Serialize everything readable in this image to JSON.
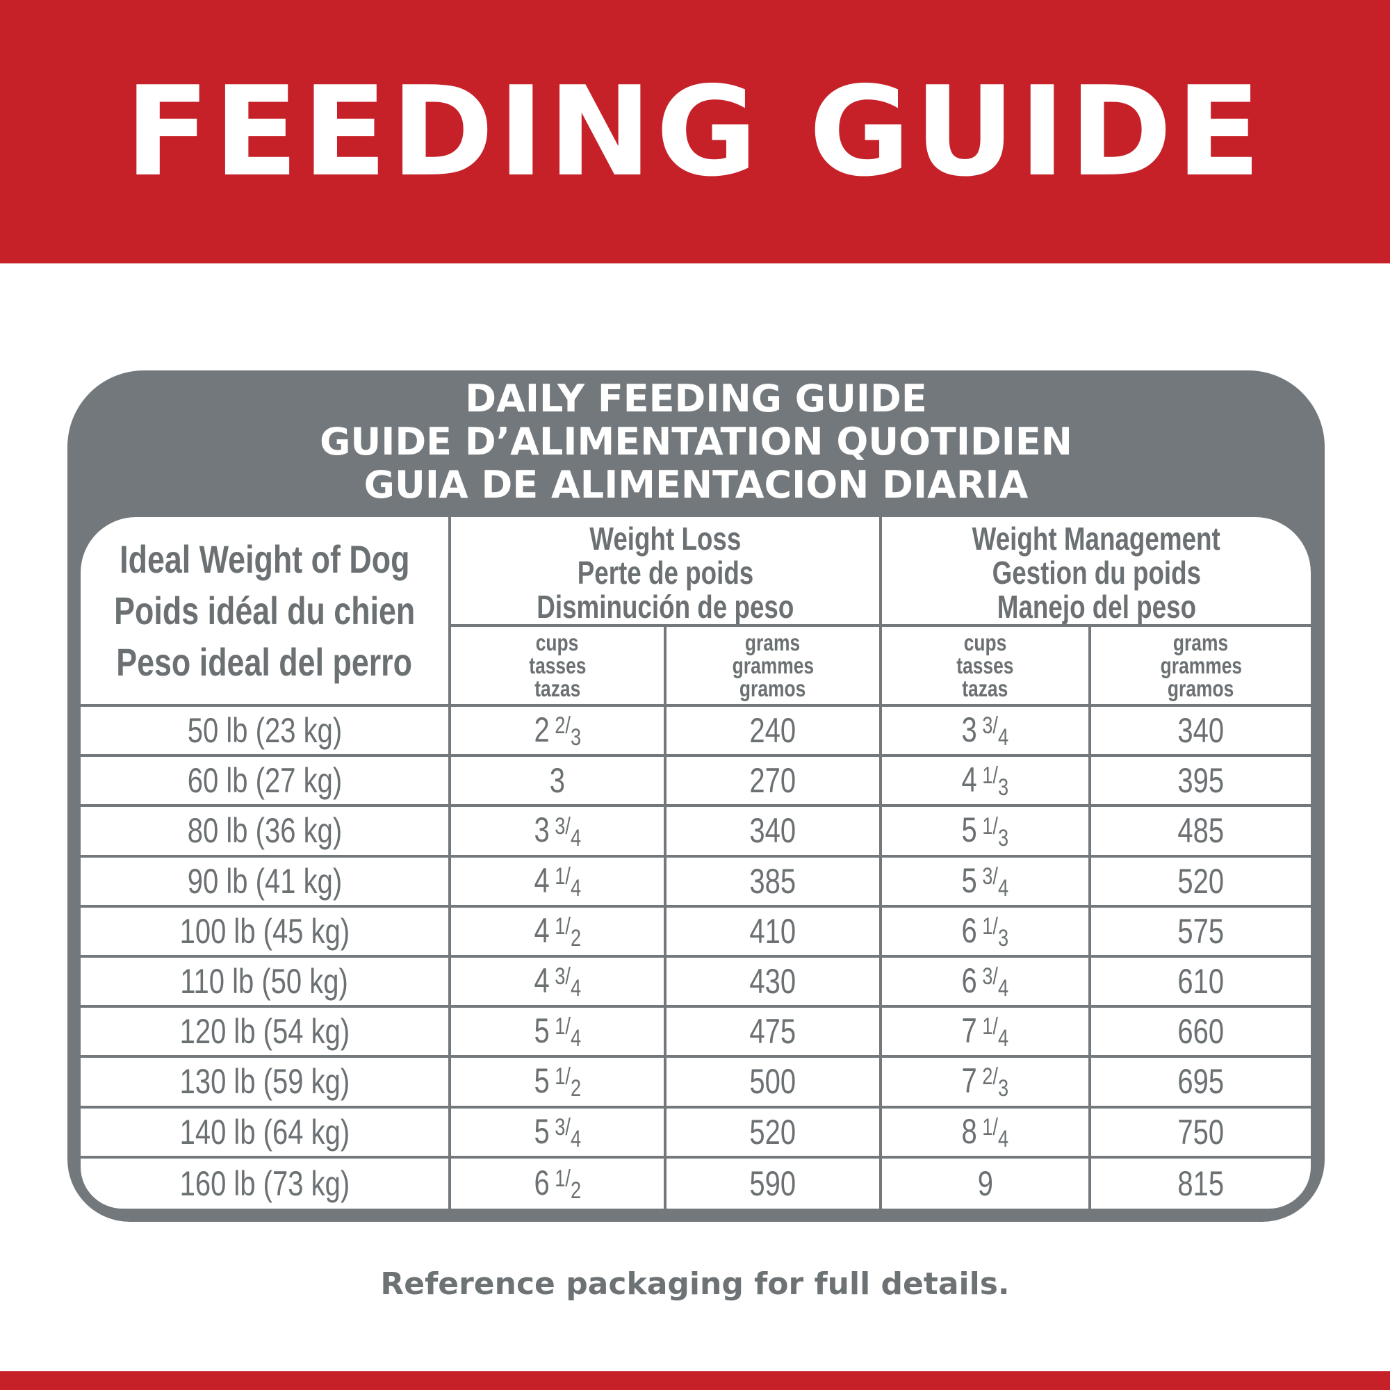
{
  "banner": {
    "title": "FEEDING GUIDE"
  },
  "guide": {
    "title_lines": [
      "DAILY FEEDING GUIDE",
      "GUIDE D’ALIMENTATION QUOTIDIEN",
      "GUIA DE ALIMENTACION DIARIA"
    ],
    "weight_header": [
      "Ideal Weight of Dog",
      "Poids idéal du chien",
      "Peso ideal del perro"
    ],
    "groups": [
      {
        "lines": [
          "Weight Loss",
          "Perte de poids",
          "Disminución de peso"
        ]
      },
      {
        "lines": [
          "Weight Management",
          "Gestion du poids",
          "Manejo del peso"
        ]
      }
    ],
    "units": [
      [
        "cups",
        "tasses",
        "tazas"
      ],
      [
        "grams",
        "grammes",
        "gramos"
      ],
      [
        "cups",
        "tasses",
        "tazas"
      ],
      [
        "grams",
        "grammes",
        "gramos"
      ]
    ],
    "rows": [
      {
        "weight": "50 lb (23 kg)",
        "loss_cups": {
          "whole": "2",
          "num": "2",
          "den": "3"
        },
        "loss_grams": "240",
        "mgmt_cups": {
          "whole": "3",
          "num": "3",
          "den": "4"
        },
        "mgmt_grams": "340"
      },
      {
        "weight": "60 lb (27 kg)",
        "loss_cups": {
          "whole": "3"
        },
        "loss_grams": "270",
        "mgmt_cups": {
          "whole": "4",
          "num": "1",
          "den": "3"
        },
        "mgmt_grams": "395"
      },
      {
        "weight": "80 lb (36 kg)",
        "loss_cups": {
          "whole": "3",
          "num": "3",
          "den": "4"
        },
        "loss_grams": "340",
        "mgmt_cups": {
          "whole": "5",
          "num": "1",
          "den": "3"
        },
        "mgmt_grams": "485"
      },
      {
        "weight": "90 lb (41 kg)",
        "loss_cups": {
          "whole": "4",
          "num": "1",
          "den": "4"
        },
        "loss_grams": "385",
        "mgmt_cups": {
          "whole": "5",
          "num": "3",
          "den": "4"
        },
        "mgmt_grams": "520"
      },
      {
        "weight": "100 lb (45 kg)",
        "loss_cups": {
          "whole": "4",
          "num": "1",
          "den": "2"
        },
        "loss_grams": "410",
        "mgmt_cups": {
          "whole": "6",
          "num": "1",
          "den": "3"
        },
        "mgmt_grams": "575"
      },
      {
        "weight": "110 lb (50 kg)",
        "loss_cups": {
          "whole": "4",
          "num": "3",
          "den": "4"
        },
        "loss_grams": "430",
        "mgmt_cups": {
          "whole": "6",
          "num": "3",
          "den": "4"
        },
        "mgmt_grams": "610"
      },
      {
        "weight": "120 lb (54 kg)",
        "loss_cups": {
          "whole": "5",
          "num": "1",
          "den": "4"
        },
        "loss_grams": "475",
        "mgmt_cups": {
          "whole": "7",
          "num": "1",
          "den": "4"
        },
        "mgmt_grams": "660"
      },
      {
        "weight": "130 lb (59 kg)",
        "loss_cups": {
          "whole": "5",
          "num": "1",
          "den": "2"
        },
        "loss_grams": "500",
        "mgmt_cups": {
          "whole": "7",
          "num": "2",
          "den": "3"
        },
        "mgmt_grams": "695"
      },
      {
        "weight": "140 lb (64 kg)",
        "loss_cups": {
          "whole": "5",
          "num": "3",
          "den": "4"
        },
        "loss_grams": "520",
        "mgmt_cups": {
          "whole": "8",
          "num": "1",
          "den": "4"
        },
        "mgmt_grams": "750"
      },
      {
        "weight": "160 lb (73 kg)",
        "loss_cups": {
          "whole": "6",
          "num": "1",
          "den": "2"
        },
        "loss_grams": "590",
        "mgmt_cups": {
          "whole": "9"
        },
        "mgmt_grams": "815"
      }
    ]
  },
  "footer": {
    "note": "Reference packaging for full details."
  },
  "colors": {
    "brand_red": "#c62128",
    "panel_gray": "#72787b",
    "text_gray": "#6b7073"
  }
}
